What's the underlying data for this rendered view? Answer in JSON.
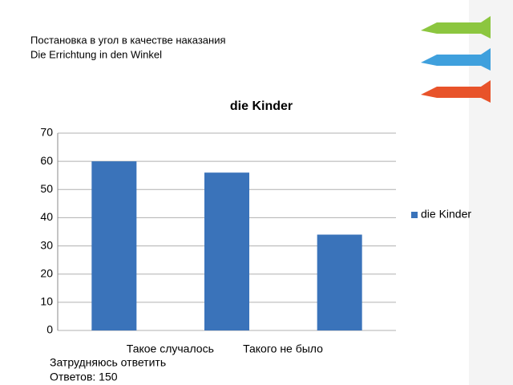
{
  "slide": {
    "title_lines": [
      "Постановка в угол в качестве наказания",
      "Die Errichtung in den Winkel"
    ],
    "footer": "Ответов: 150"
  },
  "chart_data": {
    "type": "bar",
    "title": "die Kinder",
    "categories": [
      "Такое случалось",
      "Такого не было",
      "Затрудняюсь ответить"
    ],
    "series": [
      {
        "name": "die Kinder",
        "color": "#3a73ba",
        "values": [
          60,
          56,
          34
        ]
      }
    ],
    "ylim": [
      0,
      70
    ],
    "yticks": [
      0,
      10,
      20,
      30,
      40,
      50,
      60,
      70
    ],
    "grid": true,
    "legend": "right"
  }
}
